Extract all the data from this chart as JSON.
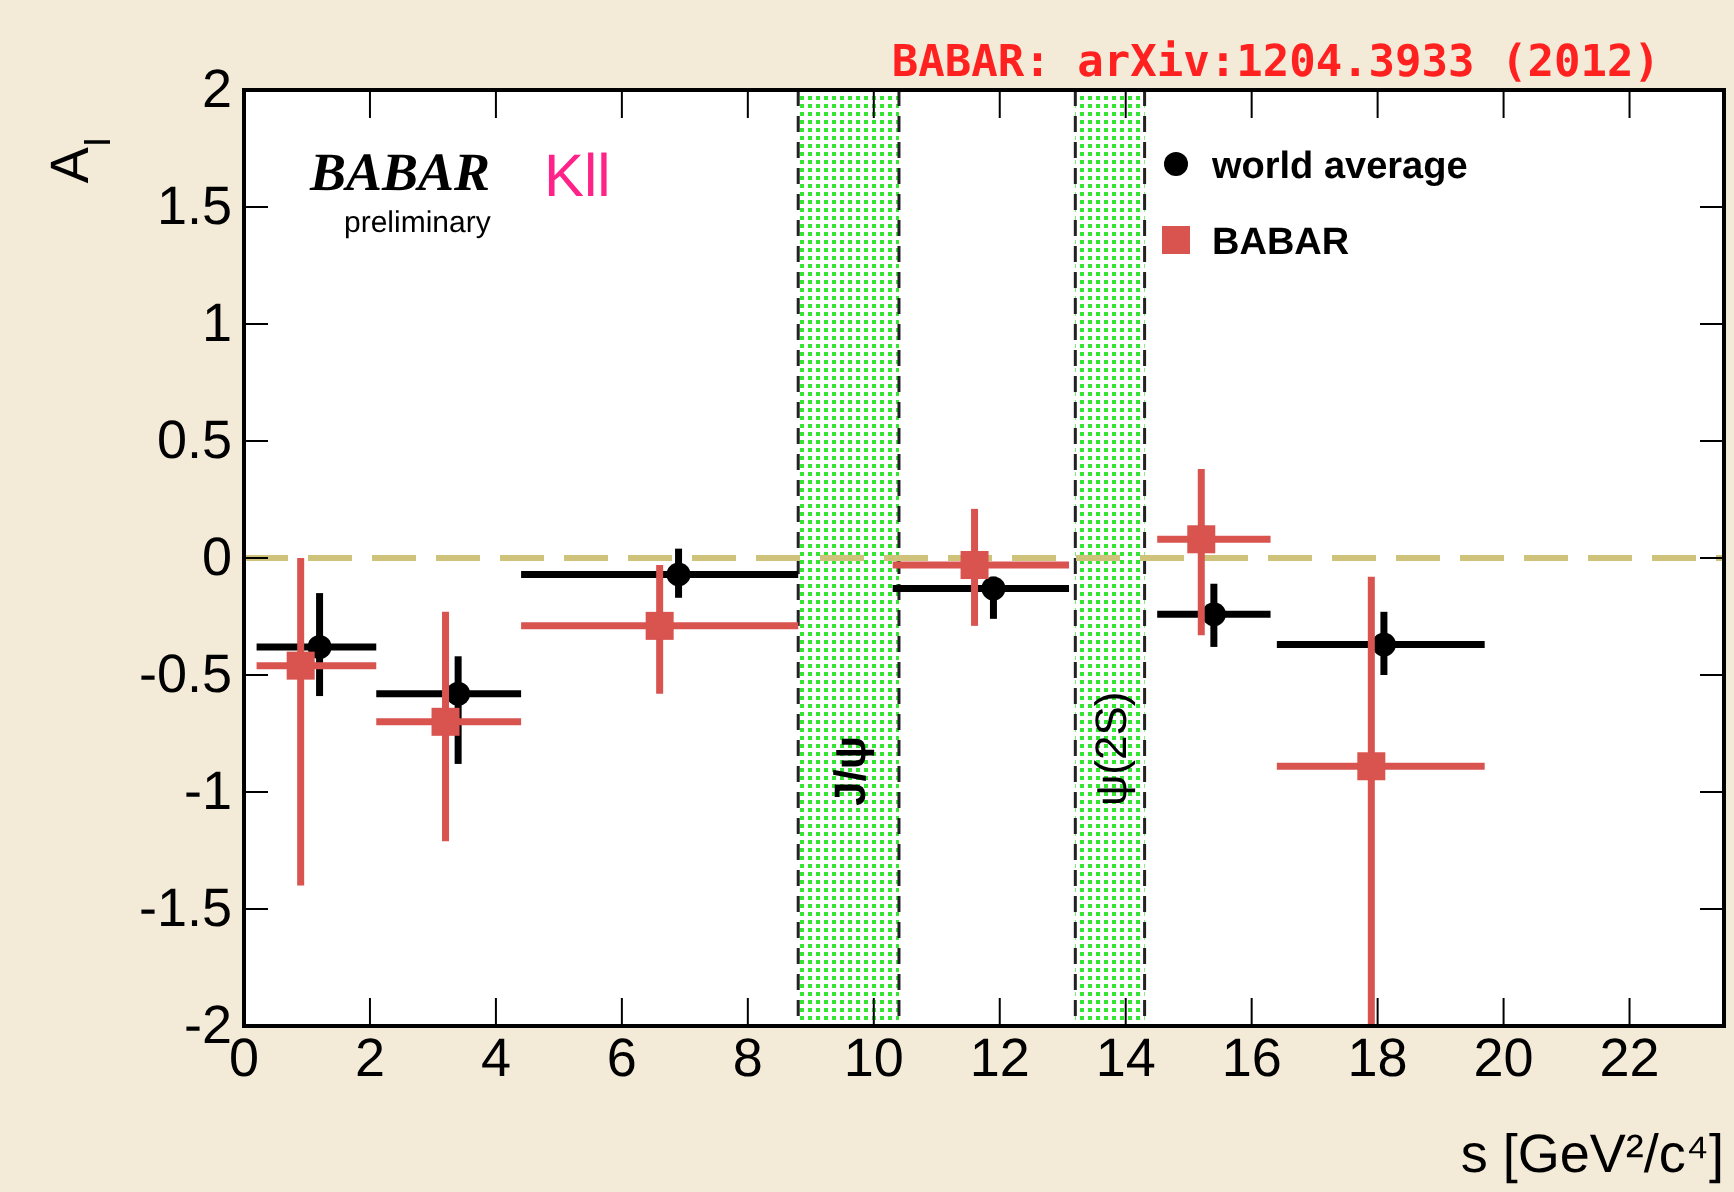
{
  "chart_data": {
    "type": "scatter",
    "xlabel": "s [GeV²/c⁴]",
    "ylabel": "A$_{I}$",
    "xlim": [
      0,
      23.5
    ],
    "xticks": [
      0,
      2,
      4,
      6,
      8,
      10,
      12,
      14,
      16,
      18,
      20,
      22
    ],
    "ylim": [
      -2,
      2
    ],
    "yticks": [
      -2,
      -1.5,
      -1,
      -0.5,
      0,
      0.5,
      1,
      1.5,
      2
    ],
    "series": [
      {
        "name": "world average",
        "color": "#000000",
        "marker": "circle",
        "x": [
          1.2,
          3.4,
          6.9,
          11.9,
          15.4,
          18.1
        ],
        "values": [
          -0.38,
          -0.58,
          -0.07,
          -0.13,
          -0.24,
          -0.37
        ],
        "errors": [
          [
            -0.59,
            -0.15
          ],
          [
            -0.88,
            -0.42
          ],
          [
            -0.17,
            0.04
          ],
          [
            -0.26,
            -0.08
          ],
          [
            -0.38,
            -0.11
          ],
          [
            -0.5,
            -0.23
          ]
        ],
        "xerrors": [
          [
            0.2,
            2.1
          ],
          [
            2.1,
            4.4
          ],
          [
            4.4,
            8.8
          ],
          [
            10.3,
            13.1
          ],
          [
            14.5,
            16.3
          ],
          [
            16.4,
            19.7
          ]
        ]
      },
      {
        "name": "BABAR",
        "color": "#d9534f",
        "marker": "square",
        "x": [
          0.9,
          3.2,
          6.6,
          11.6,
          15.2,
          17.9
        ],
        "values": [
          -0.46,
          -0.7,
          -0.29,
          -0.03,
          0.08,
          -0.89
        ],
        "errors": [
          [
            -1.4,
            0.0
          ],
          [
            -1.21,
            -0.23
          ],
          [
            -0.58,
            -0.03
          ],
          [
            -0.29,
            0.21
          ],
          [
            -0.33,
            0.38
          ],
          [
            -2,
            -0.08
          ]
        ],
        "xerrors": [
          [
            0.2,
            2.1
          ],
          [
            2.1,
            4.4
          ],
          [
            4.4,
            8.8
          ],
          [
            10.3,
            13.1
          ],
          [
            14.5,
            16.3
          ],
          [
            16.4,
            19.7
          ]
        ]
      }
    ],
    "ref_lines": [
      {
        "axis": "y",
        "value": 0,
        "color": "#cfc27a",
        "line_style": "dashed"
      }
    ],
    "bands": [
      {
        "axis": "x",
        "from": 8.8,
        "to": 10.4,
        "label": "J/ψ",
        "color": "#33e633"
      },
      {
        "axis": "x",
        "from": 13.2,
        "to": 14.3,
        "label": "ψ(2S)",
        "color": "#33e633"
      }
    ],
    "legend": "top right",
    "annotations": [
      "BABAR: arXiv:1204.3933 (2012)",
      "BABAR",
      "preliminary",
      "Kll"
    ]
  }
}
